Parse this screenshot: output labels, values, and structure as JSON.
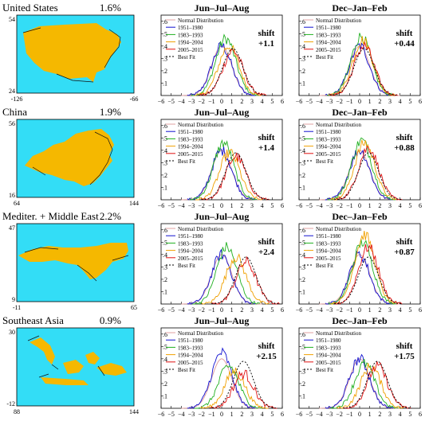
{
  "colors": {
    "ocean": "#33ddf6",
    "region_fill": "#f5b800",
    "normal_distribution": "#e0a0a0",
    "p1951_1980": "#1010d0",
    "p1983_1993": "#20b020",
    "p1994_2004": "#f0a000",
    "p2005_2015": "#e01010",
    "best_fit": "#000000"
  },
  "legend": {
    "entries": [
      "Normal Distribution",
      "1951–1980",
      "1983–1993",
      "1994–2004",
      "2005–2015",
      "Best Fit"
    ]
  },
  "rows": [
    {
      "region": "United States",
      "percent": "1.6%",
      "lat_top": "54",
      "lat_bottom": "24",
      "lon_left": "-126",
      "lon_right": "-66",
      "shift_label": "shift",
      "summer": {
        "title": "Jun–Jul–Aug",
        "shift": "+1.1"
      },
      "winter": {
        "title": "Dec–Jan–Feb",
        "shift": "+0.44"
      }
    },
    {
      "region": "China",
      "percent": "1.9%",
      "lat_top": "56",
      "lat_bottom": "16",
      "lon_left": "64",
      "lon_right": "144",
      "shift_label": "shift",
      "summer": {
        "title": "Jun–Jul–Aug",
        "shift": "+1.4"
      },
      "winter": {
        "title": "Dec–Jan–Feb",
        "shift": "+0.88"
      }
    },
    {
      "region": "Mediter. + Middle East",
      "percent": "2.2%",
      "lat_top": "47",
      "lat_bottom": "9",
      "lon_left": "-11",
      "lon_right": "65",
      "shift_label": "shift",
      "summer": {
        "title": "Jun–Jul–Aug",
        "shift": "+2.4"
      },
      "winter": {
        "title": "Dec–Jan–Feb",
        "shift": "+0.87"
      }
    },
    {
      "region": "Southeast Asia",
      "percent": "0.9%",
      "lat_top": "30",
      "lat_bottom": "-12",
      "lon_left": "88",
      "lon_right": "144",
      "shift_label": "shift",
      "summer": {
        "title": "Jun–Jul–Aug",
        "shift": "+2.15"
      },
      "winter": {
        "title": "Dec–Jan–Feb",
        "shift": "+1.75"
      }
    }
  ],
  "chart_data": {
    "type": "line",
    "x_ticks": [
      -6,
      -5,
      -4,
      -3,
      -2,
      -1,
      0,
      1,
      2,
      3,
      4,
      5,
      6
    ],
    "y_ticks": [
      ".1",
      ".2",
      ".3",
      ".4",
      ".5",
      ".6"
    ],
    "xlim": [
      -6,
      6
    ],
    "ylim": [
      0,
      0.65
    ],
    "periods": [
      "1951–1980",
      "1983–1993",
      "1994–2004",
      "2005–2015"
    ],
    "panels": [
      {
        "region": "United States",
        "season": "Jun–Jul–Aug",
        "shift": 1.1,
        "means": [
          0.0,
          0.4,
          0.7,
          1.1
        ],
        "peaks": [
          0.4,
          0.46,
          0.4,
          0.36
        ]
      },
      {
        "region": "United States",
        "season": "Dec–Jan–Feb",
        "shift": 0.44,
        "means": [
          0.0,
          0.15,
          0.3,
          0.44
        ],
        "peaks": [
          0.4,
          0.48,
          0.45,
          0.4
        ]
      },
      {
        "region": "China",
        "season": "Jun–Jul–Aug",
        "shift": 1.4,
        "means": [
          0.0,
          0.2,
          0.8,
          1.4
        ],
        "peaks": [
          0.4,
          0.46,
          0.38,
          0.35
        ]
      },
      {
        "region": "China",
        "season": "Dec–Jan–Feb",
        "shift": 0.88,
        "means": [
          0.0,
          0.2,
          0.5,
          0.88
        ],
        "peaks": [
          0.4,
          0.48,
          0.46,
          0.42
        ]
      },
      {
        "region": "Mediter. + Middle East",
        "season": "Jun–Jul–Aug",
        "shift": 2.4,
        "means": [
          0.0,
          0.5,
          1.4,
          2.4
        ],
        "peaks": [
          0.4,
          0.46,
          0.38,
          0.34
        ]
      },
      {
        "region": "Mediter. + Middle East",
        "season": "Dec–Jan–Feb",
        "shift": 0.87,
        "means": [
          0.0,
          0.3,
          0.5,
          0.87
        ],
        "peaks": [
          0.4,
          0.5,
          0.56,
          0.46
        ]
      },
      {
        "region": "Southeast Asia",
        "season": "Jun–Jul–Aug",
        "shift": 2.15,
        "means": [
          0.0,
          0.7,
          1.3,
          2.15
        ],
        "peaks": [
          0.45,
          0.34,
          0.3,
          0.28
        ]
      },
      {
        "region": "Southeast Asia",
        "season": "Dec–Jan–Feb",
        "shift": 1.75,
        "means": [
          0.0,
          0.5,
          1.1,
          1.75
        ],
        "peaks": [
          0.4,
          0.36,
          0.34,
          0.34
        ]
      }
    ]
  }
}
